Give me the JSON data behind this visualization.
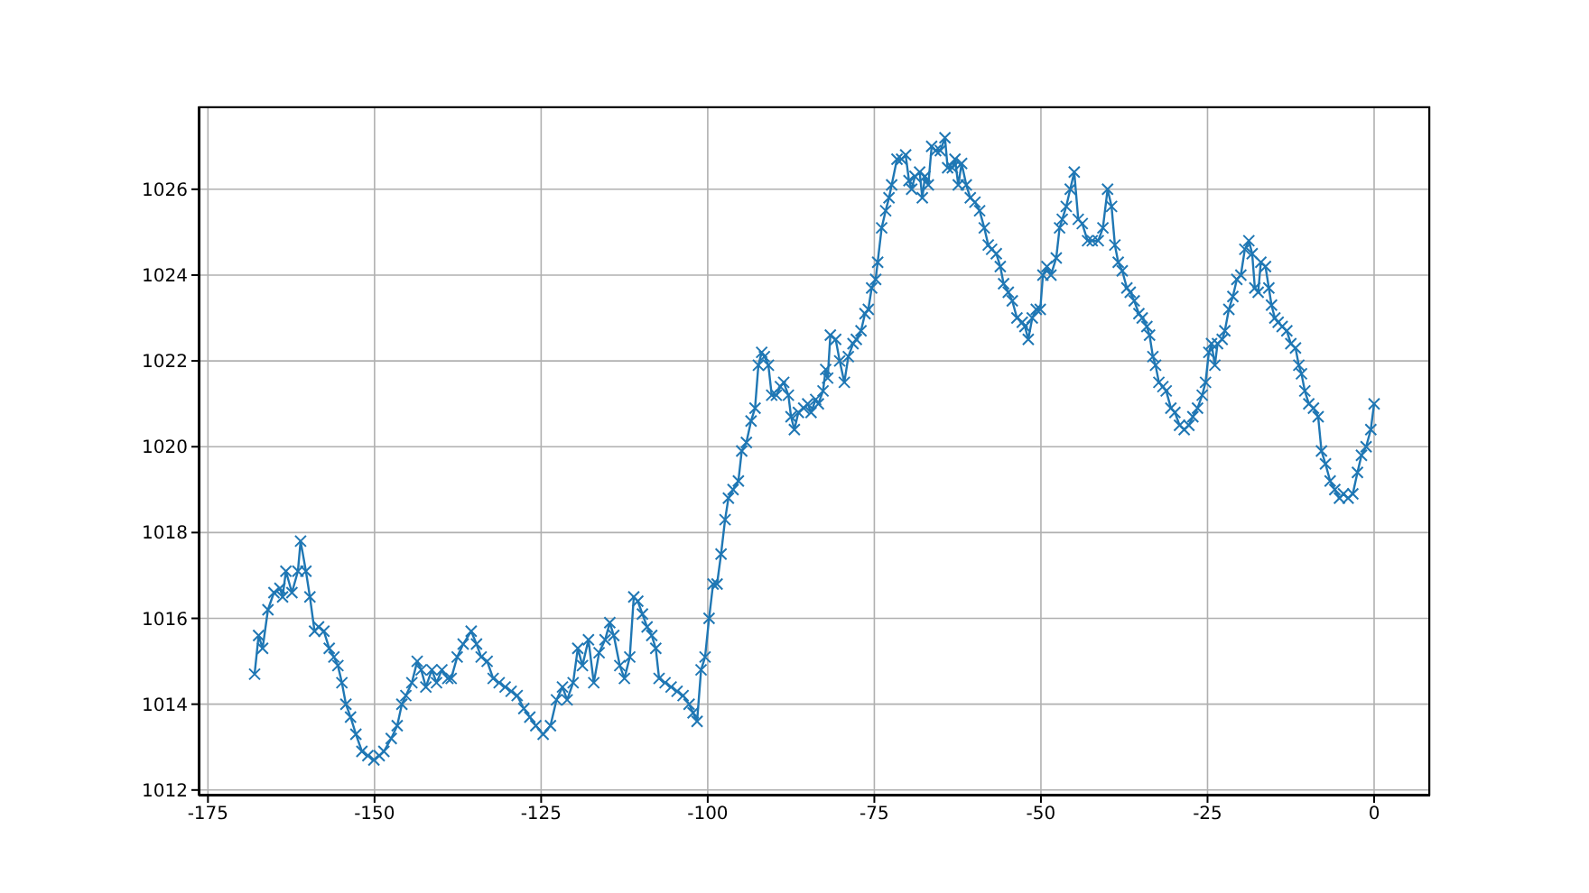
{
  "chart_data": {
    "type": "line",
    "color": "#1f77b4",
    "marker": "cross",
    "line_style": "solid",
    "grid": true,
    "xlim": [
      -176.4,
      8.4
    ],
    "xticks": [
      -175,
      -150,
      -125,
      -100,
      -75,
      -50,
      -25,
      0
    ],
    "ylim": [
      1011.87,
      1027.93
    ],
    "yticks": [
      1012,
      1014,
      1016,
      1018,
      1020,
      1022,
      1024,
      1026
    ],
    "x": [
      -168.0,
      -167.4,
      -166.8,
      -166.0,
      -165.1,
      -164.2,
      -163.8,
      -163.3,
      -162.4,
      -161.5,
      -161.1,
      -160.3,
      -159.7,
      -159.0,
      -158.4,
      -157.6,
      -156.8,
      -156.1,
      -155.5,
      -154.9,
      -154.3,
      -153.6,
      -152.8,
      -151.9,
      -151.0,
      -150.1,
      -149.3,
      -148.6,
      -147.5,
      -146.6,
      -145.9,
      -145.3,
      -144.4,
      -143.6,
      -143.0,
      -142.3,
      -141.4,
      -140.7,
      -139.9,
      -139.0,
      -138.5,
      -137.6,
      -136.7,
      -135.5,
      -134.7,
      -134.0,
      -133.1,
      -132.2,
      -131.3,
      -130.4,
      -129.5,
      -128.6,
      -127.6,
      -126.7,
      -125.8,
      -124.7,
      -123.6,
      -122.7,
      -121.8,
      -121.1,
      -120.2,
      -119.5,
      -118.8,
      -117.9,
      -117.1,
      -116.3,
      -115.4,
      -114.7,
      -114.1,
      -113.2,
      -112.5,
      -111.7,
      -111.1,
      -110.5,
      -109.8,
      -109.1,
      -108.4,
      -107.8,
      -107.3,
      -106.4,
      -105.5,
      -104.6,
      -103.7,
      -102.8,
      -102.2,
      -101.6,
      -101.0,
      -100.4,
      -99.8,
      -99.2,
      -98.6,
      -98.0,
      -97.4,
      -96.9,
      -96.2,
      -95.4,
      -94.9,
      -94.2,
      -93.5,
      -92.9,
      -92.4,
      -91.9,
      -91.5,
      -90.9,
      -90.4,
      -89.7,
      -89.1,
      -88.6,
      -87.9,
      -87.5,
      -87.0,
      -86.4,
      -85.6,
      -85.0,
      -84.5,
      -83.8,
      -83.4,
      -82.7,
      -82.3,
      -82.0,
      -81.6,
      -80.8,
      -80.2,
      -79.5,
      -78.9,
      -78.2,
      -77.7,
      -77.0,
      -76.4,
      -75.9,
      -75.4,
      -74.8,
      -74.5,
      -73.9,
      -73.3,
      -72.8,
      -72.4,
      -71.6,
      -70.9,
      -70.3,
      -69.8,
      -69.4,
      -68.9,
      -68.2,
      -67.8,
      -67.4,
      -66.9,
      -66.4,
      -65.8,
      -65.1,
      -64.4,
      -64.0,
      -63.3,
      -62.9,
      -62.4,
      -61.9,
      -61.2,
      -60.6,
      -59.9,
      -59.2,
      -58.5,
      -57.9,
      -57.4,
      -56.7,
      -56.1,
      -55.6,
      -54.9,
      -54.3,
      -53.6,
      -52.8,
      -52.4,
      -51.9,
      -51.3,
      -50.7,
      -50.1,
      -49.7,
      -49.1,
      -48.5,
      -47.7,
      -47.2,
      -46.8,
      -46.2,
      -45.6,
      -45.0,
      -44.4,
      -43.8,
      -43.0,
      -42.3,
      -41.4,
      -40.7,
      -40.0,
      -39.4,
      -38.9,
      -38.4,
      -37.8,
      -37.1,
      -36.6,
      -36.0,
      -35.3,
      -34.8,
      -34.1,
      -33.7,
      -33.2,
      -32.8,
      -32.3,
      -31.7,
      -31.2,
      -30.5,
      -29.9,
      -29.2,
      -28.5,
      -27.8,
      -27.2,
      -26.5,
      -25.8,
      -25.3,
      -24.8,
      -24.4,
      -23.9,
      -23.5,
      -22.8,
      -22.4,
      -21.8,
      -21.2,
      -20.6,
      -20.0,
      -19.4,
      -18.8,
      -18.3,
      -17.9,
      -17.4,
      -17.0,
      -16.3,
      -15.8,
      -15.4,
      -14.9,
      -14.4,
      -13.8,
      -13.1,
      -12.5,
      -11.8,
      -11.3,
      -10.9,
      -10.4,
      -9.8,
      -9.1,
      -8.4,
      -7.9,
      -7.3,
      -6.6,
      -5.9,
      -5.2,
      -4.6,
      -3.9,
      -3.2,
      -2.5,
      -1.9,
      -1.2,
      -0.5,
      0.0
    ],
    "values": [
      1014.7,
      1015.6,
      1015.3,
      1016.2,
      1016.6,
      1016.7,
      1016.5,
      1017.1,
      1016.6,
      1017.1,
      1017.8,
      1017.1,
      1016.5,
      1015.7,
      1015.8,
      1015.7,
      1015.3,
      1015.1,
      1014.9,
      1014.5,
      1014.0,
      1013.7,
      1013.3,
      1012.9,
      1012.8,
      1012.7,
      1012.8,
      1012.9,
      1013.2,
      1013.5,
      1014.0,
      1014.2,
      1014.5,
      1015.0,
      1014.8,
      1014.4,
      1014.8,
      1014.5,
      1014.8,
      1014.6,
      1014.6,
      1015.1,
      1015.4,
      1015.7,
      1015.4,
      1015.1,
      1015.0,
      1014.6,
      1014.5,
      1014.4,
      1014.3,
      1014.2,
      1013.9,
      1013.7,
      1013.5,
      1013.3,
      1013.5,
      1014.1,
      1014.4,
      1014.1,
      1014.5,
      1015.3,
      1014.9,
      1015.5,
      1014.5,
      1015.2,
      1015.5,
      1015.9,
      1015.6,
      1014.9,
      1014.6,
      1015.1,
      1016.5,
      1016.4,
      1016.1,
      1015.8,
      1015.6,
      1015.3,
      1014.6,
      1014.5,
      1014.4,
      1014.3,
      1014.2,
      1014.0,
      1013.8,
      1013.6,
      1014.8,
      1015.1,
      1016.0,
      1016.8,
      1016.8,
      1017.5,
      1018.3,
      1018.8,
      1019.0,
      1019.2,
      1019.9,
      1020.1,
      1020.6,
      1020.9,
      1021.9,
      1022.2,
      1022.1,
      1021.9,
      1021.2,
      1021.2,
      1021.4,
      1021.5,
      1021.2,
      1020.7,
      1020.4,
      1020.8,
      1020.9,
      1021.0,
      1020.8,
      1021.1,
      1021.0,
      1021.3,
      1021.8,
      1021.6,
      1022.6,
      1022.5,
      1022.0,
      1021.5,
      1022.1,
      1022.4,
      1022.5,
      1022.7,
      1023.1,
      1023.2,
      1023.7,
      1023.9,
      1024.3,
      1025.1,
      1025.5,
      1025.8,
      1026.1,
      1026.7,
      1026.7,
      1026.8,
      1026.2,
      1026.0,
      1026.3,
      1026.4,
      1025.8,
      1026.3,
      1026.1,
      1027.0,
      1026.9,
      1026.9,
      1027.2,
      1026.5,
      1026.5,
      1026.7,
      1026.1,
      1026.6,
      1026.1,
      1025.8,
      1025.7,
      1025.5,
      1025.1,
      1024.7,
      1024.6,
      1024.5,
      1024.2,
      1023.8,
      1023.6,
      1023.4,
      1023.0,
      1022.9,
      1022.8,
      1022.5,
      1023.0,
      1023.2,
      1023.2,
      1024.0,
      1024.2,
      1024.0,
      1024.4,
      1025.1,
      1025.3,
      1025.6,
      1026.0,
      1026.4,
      1025.3,
      1025.2,
      1024.8,
      1024.8,
      1024.8,
      1025.1,
      1026.0,
      1025.6,
      1024.7,
      1024.3,
      1024.1,
      1023.7,
      1023.6,
      1023.4,
      1023.1,
      1023.0,
      1022.8,
      1022.6,
      1022.1,
      1021.9,
      1021.5,
      1021.4,
      1021.3,
      1020.9,
      1020.8,
      1020.5,
      1020.4,
      1020.5,
      1020.7,
      1020.9,
      1021.2,
      1021.5,
      1022.2,
      1022.4,
      1021.9,
      1022.4,
      1022.5,
      1022.7,
      1023.2,
      1023.5,
      1023.9,
      1024.0,
      1024.6,
      1024.8,
      1024.5,
      1023.7,
      1023.6,
      1024.3,
      1024.2,
      1023.7,
      1023.3,
      1023.0,
      1022.9,
      1022.8,
      1022.7,
      1022.4,
      1022.3,
      1021.9,
      1021.7,
      1021.3,
      1021.0,
      1020.9,
      1020.7,
      1019.9,
      1019.6,
      1019.2,
      1019.0,
      1018.8,
      1018.9,
      1018.8,
      1018.9,
      1019.4,
      1019.8,
      1020.0,
      1020.4,
      1021.0
    ]
  }
}
